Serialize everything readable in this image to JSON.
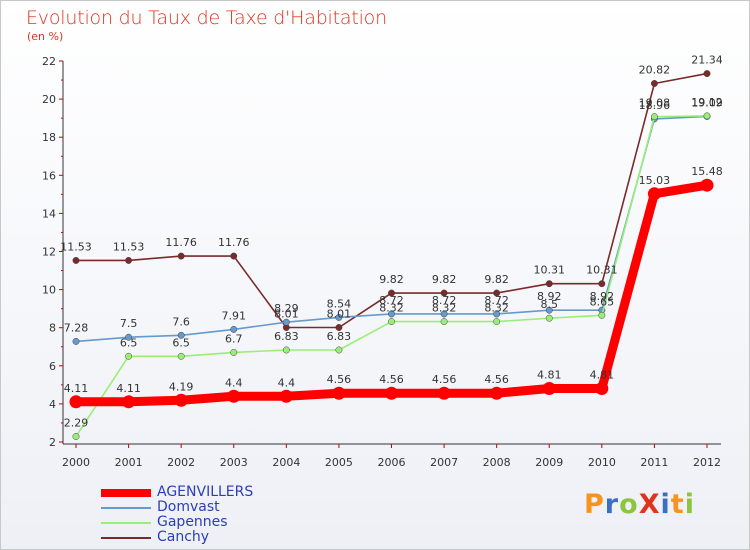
{
  "title": "Evolution du Taux de Taxe d'Habitation",
  "subtitle": "(en %)",
  "logo_text": "ProXiti",
  "logo_colors": [
    "#f7941d",
    "#3a6fc4",
    "#8cc63f",
    "#e0331e",
    "#3a6fc4",
    "#f7941d",
    "#8cc63f"
  ],
  "chart_data": {
    "type": "line",
    "title": "Evolution du Taux de Taxe d'Habitation",
    "ylabel": "(en %)",
    "xlabel": "",
    "x": [
      "2000",
      "2001",
      "2002",
      "2003",
      "2004",
      "2005",
      "2006",
      "2007",
      "2008",
      "2009",
      "2010",
      "2011",
      "2012"
    ],
    "ylim": [
      2,
      22
    ],
    "yticks": [
      2,
      4,
      6,
      8,
      10,
      12,
      14,
      16,
      18,
      20,
      22
    ],
    "grid": false,
    "legend_position": "bottom-left",
    "series": [
      {
        "name": "AGENVILLERS",
        "color": "#ff0000",
        "values": [
          4.11,
          4.11,
          4.19,
          4.4,
          4.4,
          4.56,
          4.56,
          4.56,
          4.56,
          4.81,
          4.81,
          15.03,
          15.48
        ],
        "labels": [
          "4.11",
          "4.11",
          "4.19",
          "4.4",
          "4.4",
          "4.56",
          "4.56",
          "4.56",
          "4.56",
          "4.81",
          "4.81",
          "15.03",
          "15.48"
        ],
        "emphasis": true
      },
      {
        "name": "Domvast",
        "color": "#6699cc",
        "values": [
          7.28,
          7.5,
          7.6,
          7.91,
          8.29,
          8.54,
          8.72,
          8.72,
          8.72,
          8.92,
          8.92,
          18.96,
          19.09
        ],
        "labels": [
          "7.28",
          "7.5",
          "7.6",
          "7.91",
          "8.29",
          "8.54",
          "8.72",
          "8.72",
          "8.72",
          "8.92",
          "8.92",
          "18.96",
          "19.09"
        ],
        "emphasis": false
      },
      {
        "name": "Gapennes",
        "color": "#99ee77",
        "values": [
          2.29,
          6.5,
          6.5,
          6.7,
          6.83,
          6.83,
          8.32,
          8.32,
          8.32,
          8.5,
          8.65,
          19.08,
          19.12
        ],
        "labels": [
          "2.29",
          "6.5",
          "6.5",
          "6.7",
          "6.83",
          "6.83",
          "8.32",
          "8.32",
          "8.32",
          "8.5",
          "8.65",
          "19.08",
          "19.12"
        ],
        "emphasis": false
      },
      {
        "name": "Canchy",
        "color": "#7a2a2a",
        "values": [
          11.53,
          11.53,
          11.76,
          11.76,
          8.01,
          8.01,
          9.82,
          9.82,
          9.82,
          10.31,
          10.31,
          20.82,
          21.34
        ],
        "labels": [
          "11.53",
          "11.53",
          "11.76",
          "11.76",
          "8.01",
          "8.01",
          "9.82",
          "9.82",
          "9.82",
          "10.31",
          "10.31",
          "20.82",
          "21.34"
        ],
        "emphasis": false
      }
    ]
  }
}
